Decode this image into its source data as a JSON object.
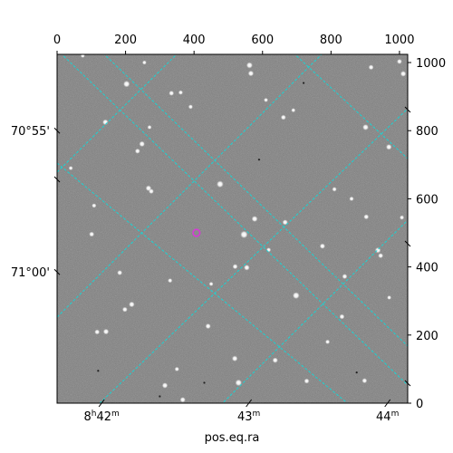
{
  "figure": {
    "xlabel": "pos.eq.ra",
    "image_size": {
      "x": 1024,
      "y": 1024
    },
    "top_ticks": [
      {
        "label": "0",
        "value": 0
      },
      {
        "label": "200",
        "value": 200
      },
      {
        "label": "400",
        "value": 400
      },
      {
        "label": "600",
        "value": 600
      },
      {
        "label": "800",
        "value": 800
      },
      {
        "label": "1000",
        "value": 1000
      }
    ],
    "right_ticks": [
      {
        "label": "0",
        "value": 0
      },
      {
        "label": "200",
        "value": 200
      },
      {
        "label": "400",
        "value": 400
      },
      {
        "label": "600",
        "value": 600
      },
      {
        "label": "800",
        "value": 800
      },
      {
        "label": "1000",
        "value": 1000
      }
    ],
    "ra_ticks": [
      {
        "h": "8",
        "m": "42",
        "sup_h": "h",
        "sup_m": "m",
        "value": 130
      },
      {
        "h": "",
        "m": "43",
        "sup_h": "",
        "sup_m": "m",
        "value": 560
      },
      {
        "h": "",
        "m": "44",
        "sup_h": "",
        "sup_m": "m",
        "value": 965
      }
    ],
    "dec_ticks": [
      {
        "label": "70°55'",
        "value": 800
      },
      {
        "label": "71°00'",
        "value": 385
      }
    ],
    "colors": {
      "grid": "#1ad3d3",
      "marker": "#d63ad6",
      "sky": "#7f7f7f"
    },
    "marker": {
      "x": 407,
      "y": 500
    },
    "stars": [
      {
        "x": 203,
        "y": 937,
        "m": 1.5
      },
      {
        "x": 334,
        "y": 910,
        "m": 1
      },
      {
        "x": 562,
        "y": 992,
        "m": 1.4
      },
      {
        "x": 566,
        "y": 968,
        "m": 1.2
      },
      {
        "x": 1011,
        "y": 967,
        "m": 1.2
      },
      {
        "x": 917,
        "y": 986,
        "m": 1
      },
      {
        "x": 1000,
        "y": 1003,
        "m": 1
      },
      {
        "x": 141,
        "y": 825,
        "m": 1.2
      },
      {
        "x": 248,
        "y": 761,
        "m": 1.2
      },
      {
        "x": 235,
        "y": 740,
        "m": 1
      },
      {
        "x": 661,
        "y": 839,
        "m": 1
      },
      {
        "x": 901,
        "y": 810,
        "m": 1.3
      },
      {
        "x": 969,
        "y": 752,
        "m": 1.2
      },
      {
        "x": 476,
        "y": 643,
        "m": 1.6
      },
      {
        "x": 267,
        "y": 631,
        "m": 1.2
      },
      {
        "x": 275,
        "y": 622,
        "m": 1
      },
      {
        "x": 577,
        "y": 541,
        "m": 1.3
      },
      {
        "x": 546,
        "y": 495,
        "m": 1.8
      },
      {
        "x": 666,
        "y": 531,
        "m": 1.1
      },
      {
        "x": 903,
        "y": 547,
        "m": 1
      },
      {
        "x": 937,
        "y": 449,
        "m": 1.2
      },
      {
        "x": 945,
        "y": 433,
        "m": 1
      },
      {
        "x": 554,
        "y": 398,
        "m": 1.2
      },
      {
        "x": 520,
        "y": 401,
        "m": 1
      },
      {
        "x": 698,
        "y": 316,
        "m": 1.6
      },
      {
        "x": 218,
        "y": 290,
        "m": 1.2
      },
      {
        "x": 198,
        "y": 275,
        "m": 1
      },
      {
        "x": 441,
        "y": 226,
        "m": 1.1
      },
      {
        "x": 143,
        "y": 210,
        "m": 1.2
      },
      {
        "x": 117,
        "y": 209,
        "m": 1
      },
      {
        "x": 519,
        "y": 131,
        "m": 1.2
      },
      {
        "x": 637,
        "y": 126,
        "m": 1.1
      },
      {
        "x": 530,
        "y": 60,
        "m": 1.5
      },
      {
        "x": 315,
        "y": 52,
        "m": 1.2
      },
      {
        "x": 367,
        "y": 10,
        "m": 1.1
      },
      {
        "x": 729,
        "y": 65,
        "m": 1
      },
      {
        "x": 898,
        "y": 66,
        "m": 1
      },
      {
        "x": 183,
        "y": 383,
        "m": 1
      },
      {
        "x": 101,
        "y": 496,
        "m": 1
      },
      {
        "x": 840,
        "y": 372,
        "m": 1
      },
      {
        "x": 832,
        "y": 254,
        "m": 1
      },
      {
        "x": 775,
        "y": 461,
        "m": 1.1
      },
      {
        "x": 361,
        "y": 912,
        "m": 0.8
      },
      {
        "x": 390,
        "y": 870,
        "m": 0.8
      },
      {
        "x": 810,
        "y": 628,
        "m": 0.8
      },
      {
        "x": 860,
        "y": 600,
        "m": 0.8
      },
      {
        "x": 108,
        "y": 580,
        "m": 0.8
      },
      {
        "x": 330,
        "y": 360,
        "m": 0.8
      },
      {
        "x": 618,
        "y": 450,
        "m": 0.8
      },
      {
        "x": 1007,
        "y": 545,
        "m": 0.8
      },
      {
        "x": 350,
        "y": 100,
        "m": 0.8
      },
      {
        "x": 790,
        "y": 180,
        "m": 0.8
      },
      {
        "x": 270,
        "y": 810,
        "m": 0.7
      },
      {
        "x": 40,
        "y": 690,
        "m": 0.7
      },
      {
        "x": 690,
        "y": 860,
        "m": 0.7
      },
      {
        "x": 970,
        "y": 310,
        "m": 0.7
      },
      {
        "x": 450,
        "y": 350,
        "m": 0.7
      },
      {
        "x": 75,
        "y": 1020,
        "m": 0.7
      },
      {
        "x": 255,
        "y": 1000,
        "m": 0.7
      },
      {
        "x": 610,
        "y": 890,
        "m": 0.7
      }
    ]
  }
}
